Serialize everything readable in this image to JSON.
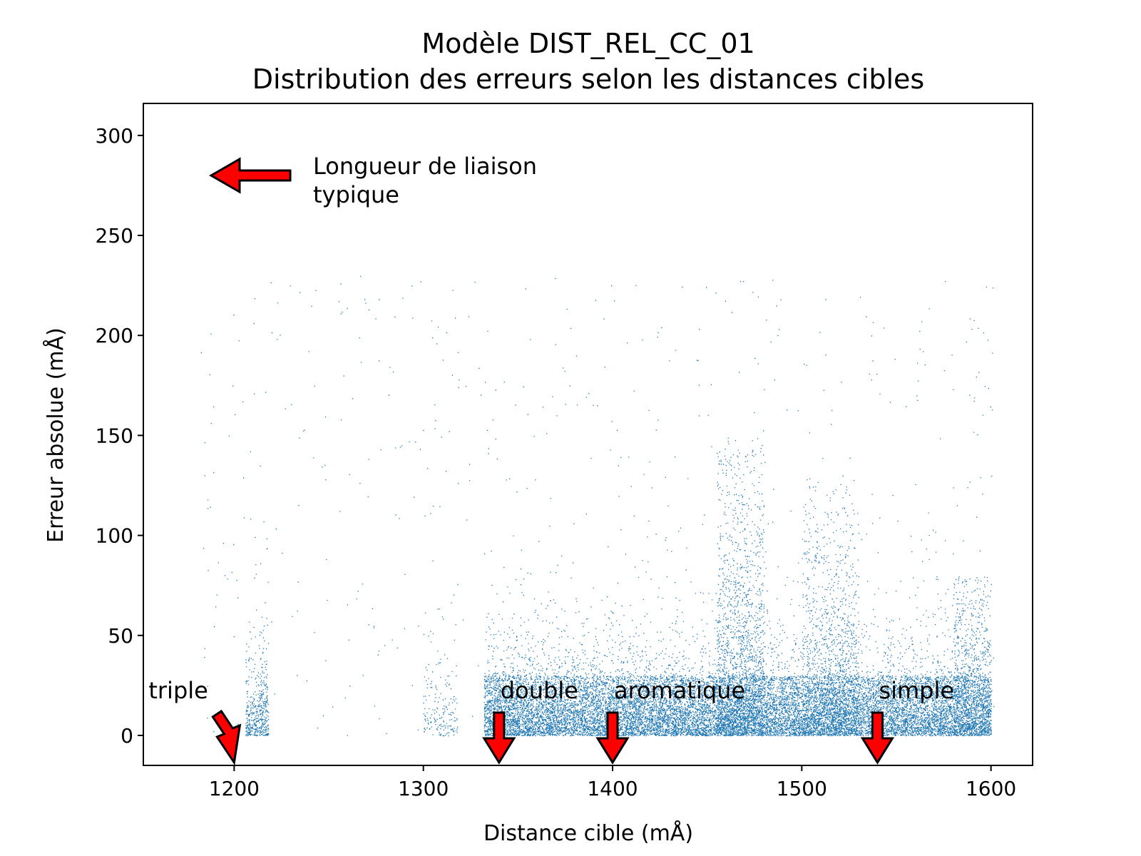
{
  "chart_data": {
    "type": "scatter",
    "title": "Modèle DIST_REL_CC_01",
    "subtitle": "Distribution des erreurs selon les distances cibles",
    "xlabel": "Distance cible (mÅ)",
    "ylabel": "Erreur absolue (mÅ)",
    "xlim": [
      1152,
      1622
    ],
    "ylim": [
      -15,
      316
    ],
    "xticks": [
      1200,
      1300,
      1400,
      1500,
      1600
    ],
    "yticks": [
      0,
      50,
      100,
      150,
      200,
      250,
      300
    ],
    "grid": false,
    "point_color": "#1f77b4",
    "clusters": [
      {
        "x_range": [
          1206,
          1218
        ],
        "y_typical": 15,
        "y_max": 200
      },
      {
        "x_range": [
          1300,
          1318
        ],
        "y_typical": 15,
        "y_max": 115
      },
      {
        "x_range": [
          1332,
          1600
        ],
        "y_typical": 15,
        "y_max": 210
      },
      {
        "x_range": [
          1455,
          1480
        ],
        "y_typical": 55,
        "y_max": 150
      },
      {
        "x_range": [
          1500,
          1530
        ],
        "y_typical": 45,
        "y_max": 130
      },
      {
        "x_range": [
          1580,
          1600
        ],
        "y_typical": 45,
        "y_max": 80
      }
    ],
    "annotations": [
      {
        "text": "Longueur de liaison\ntypique",
        "kind": "legend-arrow",
        "arrow_color": "#ff0000"
      },
      {
        "text": "triple",
        "x": 1200,
        "y": 0,
        "arrow_color": "#ff0000"
      },
      {
        "text": "double",
        "x": 1340,
        "y": 0,
        "arrow_color": "#ff0000"
      },
      {
        "text": "aromatique",
        "x": 1400,
        "y": 0,
        "arrow_color": "#ff0000"
      },
      {
        "text": "simple",
        "x": 1540,
        "y": 0,
        "arrow_color": "#ff0000"
      }
    ],
    "legend_text_line1": "Longueur de liaison",
    "legend_text_line2": "typique"
  }
}
